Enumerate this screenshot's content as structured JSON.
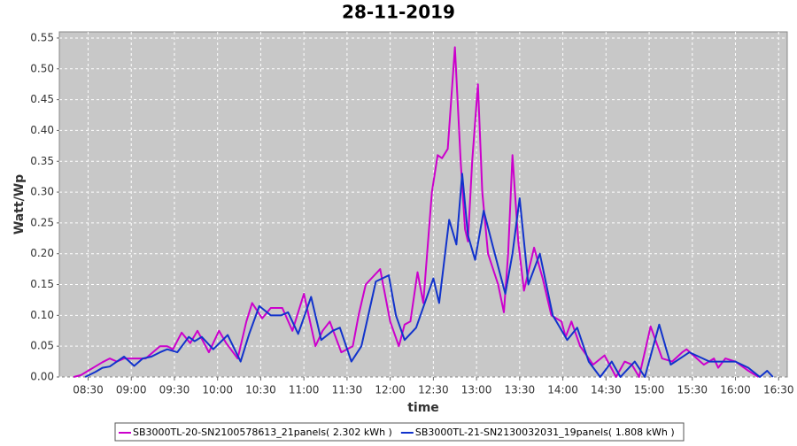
{
  "chart_data": {
    "type": "line",
    "title": "28-11-2019",
    "xlabel": "time",
    "ylabel": "Watt/Wp",
    "xlim": [
      "08:10",
      "16:36"
    ],
    "ylim": [
      0,
      0.56
    ],
    "xticks": [
      "08:30",
      "09:00",
      "09:30",
      "10:00",
      "10:30",
      "11:00",
      "11:30",
      "12:00",
      "12:30",
      "13:00",
      "13:30",
      "14:00",
      "14:30",
      "15:00",
      "15:30",
      "16:00",
      "16:30"
    ],
    "yticks": [
      {
        "value": 0,
        "label": "0.00"
      },
      0.05,
      {
        "value": 0.1,
        "label": "0.10"
      },
      0.15,
      {
        "value": 0.2,
        "label": "0.20"
      },
      0.25,
      {
        "value": 0.3,
        "label": "0.30"
      },
      0.35,
      {
        "value": 0.4,
        "label": "0.40"
      },
      0.45,
      {
        "value": 0.5,
        "label": "0.50"
      },
      0.55
    ],
    "grid": true,
    "legend": "bottom",
    "series": [
      {
        "name": "SB3000TL-20-SN2100578613_21panels( 2.302 kWh )",
        "color": "#cc00cc",
        "x": [
          "08:20",
          "08:25",
          "08:30",
          "08:35",
          "08:40",
          "08:45",
          "08:50",
          "08:55",
          "09:00",
          "09:10",
          "09:15",
          "09:20",
          "09:25",
          "09:29",
          "09:35",
          "09:41",
          "09:46",
          "09:54",
          "10:01",
          "10:06",
          "10:14",
          "10:20",
          "10:24",
          "10:31",
          "10:37",
          "10:45",
          "10:52",
          "11:00",
          "11:08",
          "11:13",
          "11:18",
          "11:26",
          "11:34",
          "11:38",
          "11:43",
          "11:53",
          "12:00",
          "12:06",
          "12:10",
          "12:14",
          "12:19",
          "12:23",
          "12:29",
          "12:33",
          "12:36",
          "12:40",
          "12:45",
          "12:49",
          "12:52",
          "12:54",
          "12:57",
          "13:01",
          "13:04",
          "13:08",
          "13:15",
          "13:19",
          "13:22",
          "13:25",
          "13:29",
          "13:33",
          "13:40",
          "13:46",
          "13:52",
          "13:59",
          "14:02",
          "14:06",
          "14:12",
          "14:21",
          "14:29",
          "14:37",
          "14:43",
          "14:48",
          "14:53",
          "15:01",
          "15:09",
          "15:16",
          "15:23",
          "15:26",
          "15:38",
          "15:45",
          "15:48",
          "15:53",
          "16:00",
          "16:09",
          "16:16"
        ],
        "values": [
          0,
          0.003,
          0.01,
          0.017,
          0.024,
          0.03,
          0.025,
          0.03,
          0.03,
          0.03,
          0.04,
          0.05,
          0.05,
          0.045,
          0.072,
          0.055,
          0.075,
          0.04,
          0.075,
          0.055,
          0.03,
          0.09,
          0.12,
          0.095,
          0.112,
          0.112,
          0.075,
          0.135,
          0.05,
          0.075,
          0.09,
          0.04,
          0.05,
          0.1,
          0.15,
          0.175,
          0.09,
          0.05,
          0.085,
          0.09,
          0.17,
          0.12,
          0.3,
          0.36,
          0.355,
          0.37,
          0.535,
          0.35,
          0.24,
          0.22,
          0.35,
          0.475,
          0.3,
          0.2,
          0.15,
          0.105,
          0.2,
          0.36,
          0.22,
          0.14,
          0.21,
          0.16,
          0.1,
          0.09,
          0.065,
          0.09,
          0.05,
          0.02,
          0.035,
          0,
          0.025,
          0.02,
          0,
          0.082,
          0.03,
          0.025,
          0.04,
          0.045,
          0.02,
          0.03,
          0.015,
          0.03,
          0.025,
          0.01,
          0
        ]
      },
      {
        "name": "SB3000TL-21-SN2130032031_19panels( 1.808 kWh )",
        "color": "#1133cc",
        "x": [
          "08:28",
          "08:35",
          "08:40",
          "08:45",
          "08:50",
          "08:55",
          "09:02",
          "09:08",
          "09:14",
          "09:20",
          "09:25",
          "09:32",
          "09:40",
          "09:44",
          "09:49",
          "09:57",
          "10:07",
          "10:16",
          "10:22",
          "10:29",
          "10:37",
          "10:44",
          "10:49",
          "10:56",
          "11:05",
          "11:12",
          "11:20",
          "11:25",
          "11:33",
          "11:40",
          "11:50",
          "11:59",
          "12:04",
          "12:10",
          "12:18",
          "12:30",
          "12:34",
          "12:41",
          "12:46",
          "12:50",
          "12:54",
          "12:59",
          "13:05",
          "13:11",
          "13:20",
          "13:25",
          "13:30",
          "13:36",
          "13:44",
          "13:53",
          "14:03",
          "14:10",
          "14:18",
          "14:26",
          "14:34",
          "14:40",
          "14:50",
          "14:57",
          "15:07",
          "15:15",
          "15:28",
          "15:42",
          "16:00",
          "16:09",
          "16:17",
          "16:22",
          "16:26"
        ],
        "values": [
          0,
          0.008,
          0.015,
          0.017,
          0.025,
          0.033,
          0.018,
          0.03,
          0.033,
          0.04,
          0.045,
          0.04,
          0.065,
          0.058,
          0.065,
          0.045,
          0.068,
          0.025,
          0.07,
          0.115,
          0.1,
          0.1,
          0.105,
          0.07,
          0.13,
          0.06,
          0.075,
          0.08,
          0.025,
          0.05,
          0.155,
          0.165,
          0.1,
          0.06,
          0.08,
          0.16,
          0.12,
          0.255,
          0.215,
          0.33,
          0.23,
          0.19,
          0.27,
          0.215,
          0.135,
          0.2,
          0.29,
          0.15,
          0.2,
          0.1,
          0.06,
          0.08,
          0.025,
          0,
          0.025,
          0,
          0.025,
          0,
          0.085,
          0.02,
          0.04,
          0.025,
          0.025,
          0.015,
          0,
          0.01,
          0
        ]
      }
    ]
  }
}
